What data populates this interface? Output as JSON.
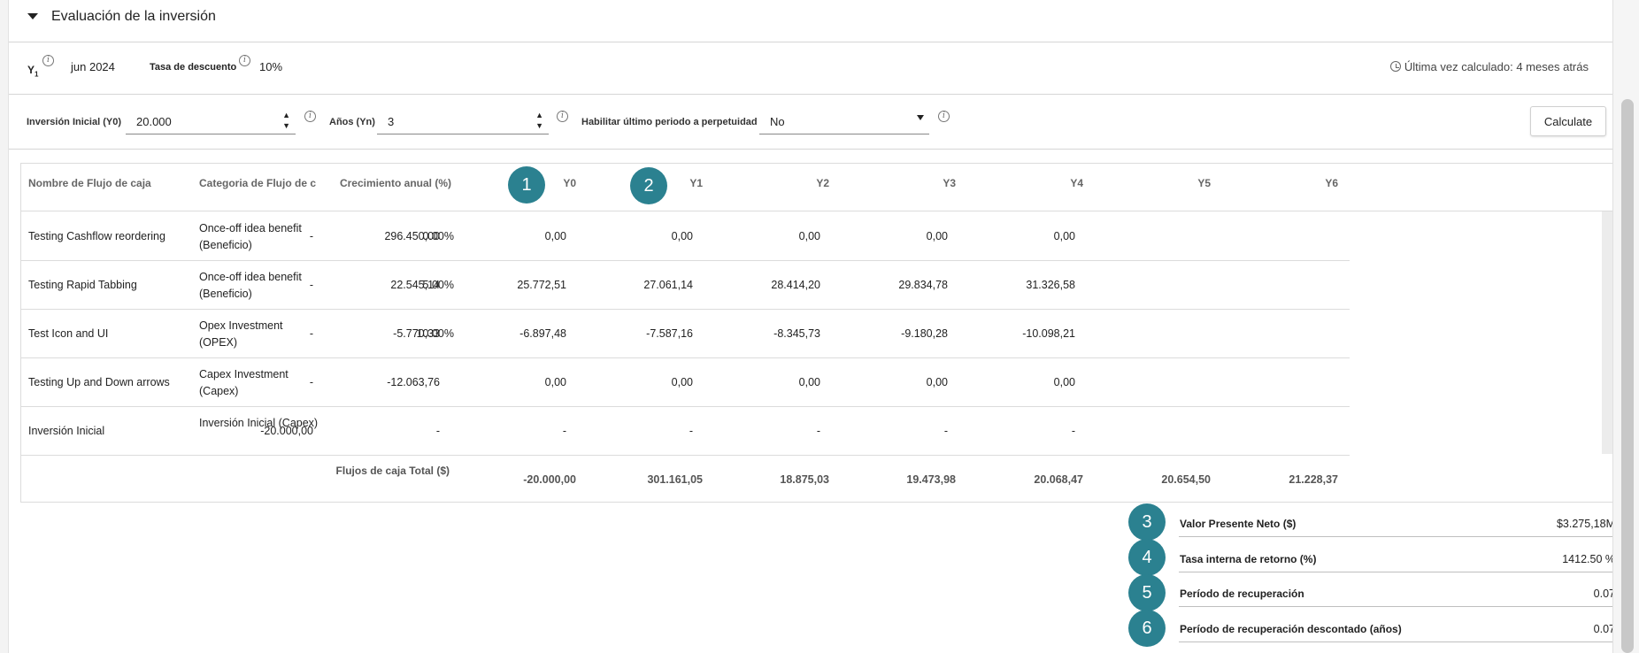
{
  "section": {
    "title": "Evaluación de la inversión"
  },
  "info": {
    "y1_label": "Y",
    "y1_sub": "1",
    "y1_value": "jun 2024",
    "discount_label": "Tasa de descuento",
    "discount_value": "10%",
    "last_calculated": "Última vez calculado: 4 meses atrás"
  },
  "inputs": {
    "initial_investment_label": "Inversión Inicial (Y0)",
    "initial_investment_value": "20.000",
    "years_label": "Años (Yn)",
    "years_value": "3",
    "perpetuity_label": "Habilitar último periodo a perpetuidad",
    "perpetuity_value": "No",
    "calculate_button": "Calculate"
  },
  "table": {
    "headers": [
      "Nombre de Flujo de caja",
      "Categoria de Flujo de c",
      "Crecimiento anual (%)",
      "Y0",
      "Y1",
      "Y2",
      "Y3",
      "Y4",
      "Y5",
      "Y6"
    ],
    "rows": [
      {
        "name": "Testing Cashflow reordering",
        "category": "Once-off idea benefit (Beneficio)",
        "growth": "0.00%",
        "values": [
          "-",
          "296.450,00",
          "0,00",
          "0,00",
          "0,00",
          "0,00",
          "0,00"
        ]
      },
      {
        "name": "Testing Rapid Tabbing",
        "category": "Once-off idea benefit (Beneficio)",
        "growth": "5.00%",
        "values": [
          "-",
          "22.545,14",
          "25.772,51",
          "27.061,14",
          "28.414,20",
          "29.834,78",
          "31.326,58"
        ]
      },
      {
        "name": "Test Icon and UI",
        "category": "Opex Investment (OPEX)",
        "growth": "10.00%",
        "values": [
          "-",
          "-5.770,33",
          "-6.897,48",
          "-7.587,16",
          "-8.345,73",
          "-9.180,28",
          "-10.098,21"
        ]
      },
      {
        "name": "Testing Up and Down arrows",
        "category": "Capex Investment (Capex)",
        "growth": "",
        "values": [
          "-",
          "-12.063,76",
          "0,00",
          "0,00",
          "0,00",
          "0,00",
          "0,00"
        ]
      },
      {
        "name": "Inversión Inicial",
        "category": "Inversión Inicial (Capex)",
        "growth": "",
        "values": [
          "-20.000,00",
          "-",
          "-",
          "-",
          "-",
          "-",
          "-"
        ]
      }
    ],
    "total_label": "Flujos de caja Total ($)",
    "total_values": [
      "-20.000,00",
      "301.161,05",
      "18.875,03",
      "19.473,98",
      "20.068,47",
      "20.654,50",
      "21.228,37"
    ]
  },
  "summary": [
    {
      "label": "Valor Presente Neto ($)",
      "value": "$3.275,18M"
    },
    {
      "label": "Tasa interna de retorno (%)",
      "value": "1412.50 %"
    },
    {
      "label": "Período de recuperación",
      "value": "0.07"
    },
    {
      "label": "Período de recuperación descontado (años)",
      "value": "0.07"
    }
  ],
  "badges": [
    "1",
    "2",
    "3",
    "4",
    "5",
    "6"
  ],
  "colors": {
    "badge": "#2b8190"
  }
}
